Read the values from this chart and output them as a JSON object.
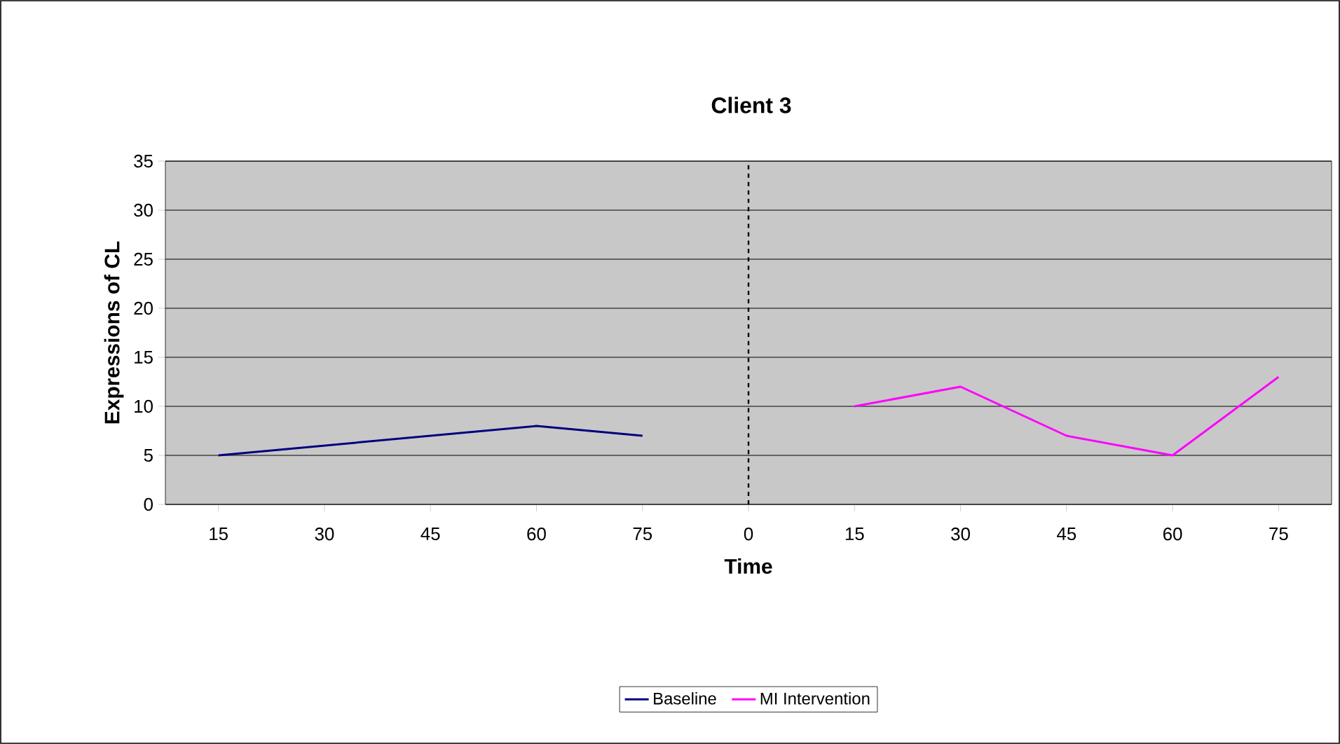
{
  "chart_data": {
    "type": "line",
    "title": "Client 3",
    "xlabel": "Time",
    "ylabel": "Expressions of CL",
    "categories": [
      "15",
      "30",
      "45",
      "60",
      "75",
      "0",
      "15",
      "30",
      "45",
      "60",
      "75"
    ],
    "series": [
      {
        "name": "Baseline",
        "color": "#000080",
        "values": [
          5,
          6,
          7,
          8,
          7,
          null,
          null,
          null,
          null,
          null,
          null
        ]
      },
      {
        "name": "MI Intervention",
        "color": "#ff00ff",
        "values": [
          null,
          null,
          null,
          null,
          null,
          null,
          10,
          12,
          7,
          5,
          13
        ]
      }
    ],
    "ylim": [
      0,
      35
    ],
    "yticks": [
      0,
      5,
      10,
      15,
      20,
      25,
      30,
      35
    ],
    "grid": "y",
    "legend": "bottom",
    "line_style": "solid",
    "marker": "none",
    "ref_lines": [
      {
        "axis": "x",
        "value": "0",
        "line_style": "dashed",
        "color": "#000000"
      }
    ]
  }
}
